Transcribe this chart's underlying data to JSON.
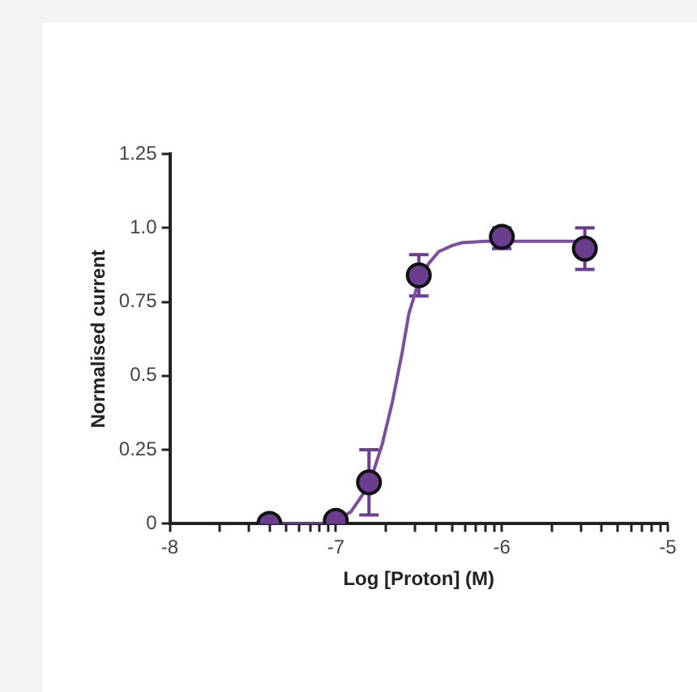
{
  "chart_data": {
    "type": "scatter",
    "xlabel": "Log [Proton] (M)",
    "ylabel": "Normalised current",
    "xlim": [
      -8,
      -5
    ],
    "xticks": [
      -8,
      {
        "value": -7.699,
        "label": null
      },
      {
        "value": -7.523,
        "label": null
      },
      {
        "value": -7.398,
        "label": null
      },
      {
        "value": -7.301,
        "label": null
      },
      {
        "value": -7.222,
        "label": null
      },
      {
        "value": -7.155,
        "label": null
      },
      {
        "value": -7.097,
        "label": null
      },
      {
        "value": -7.046,
        "label": null
      },
      -7,
      {
        "value": -6.699,
        "label": null
      },
      {
        "value": -6.523,
        "label": null
      },
      {
        "value": -6.398,
        "label": null
      },
      {
        "value": -6.301,
        "label": null
      },
      {
        "value": -6.222,
        "label": null
      },
      {
        "value": -6.155,
        "label": null
      },
      {
        "value": -6.097,
        "label": null
      },
      {
        "value": -6.046,
        "label": null
      },
      -6,
      {
        "value": -5.699,
        "label": null
      },
      {
        "value": -5.523,
        "label": null
      },
      {
        "value": -5.398,
        "label": null
      },
      {
        "value": -5.301,
        "label": null
      },
      {
        "value": -5.222,
        "label": null
      },
      {
        "value": -5.155,
        "label": null
      },
      {
        "value": -5.097,
        "label": null
      },
      {
        "value": -5.046,
        "label": null
      },
      -5
    ],
    "ylim": [
      0,
      1.25
    ],
    "yticks": [
      0,
      0.25,
      0.5,
      0.75,
      {
        "value": 1,
        "label": "1.0"
      },
      1.25
    ],
    "grid": false,
    "legend": false,
    "marker": "circle",
    "series": [
      {
        "type": "line",
        "marker": "none",
        "color": "#7b4f9e",
        "x": [
          -7.4,
          -7.1,
          -7.0,
          -6.91,
          -6.8,
          -6.72,
          -6.66,
          -6.6,
          -6.56,
          -6.5,
          -6.44,
          -6.38,
          -6.3,
          -6.24,
          -6.1,
          -6.0,
          -5.5
        ],
        "values": [
          0,
          0,
          0.01,
          0.04,
          0.13,
          0.27,
          0.41,
          0.58,
          0.71,
          0.82,
          0.88,
          0.92,
          0.94,
          0.95,
          0.955,
          0.955,
          0.955
        ]
      },
      {
        "color": "#6a3d8f",
        "x": [
          -7.4,
          -7.0,
          -6.8,
          -6.5,
          -6.0,
          -5.5
        ],
        "values": [
          0,
          0.01,
          0.14,
          0.84,
          0.97,
          0.93
        ],
        "errors": [
          null,
          null,
          [
            0.03,
            0.25
          ],
          [
            0.77,
            0.91
          ],
          [
            0.93,
            1.0
          ],
          [
            0.86,
            1.0
          ]
        ]
      }
    ]
  }
}
